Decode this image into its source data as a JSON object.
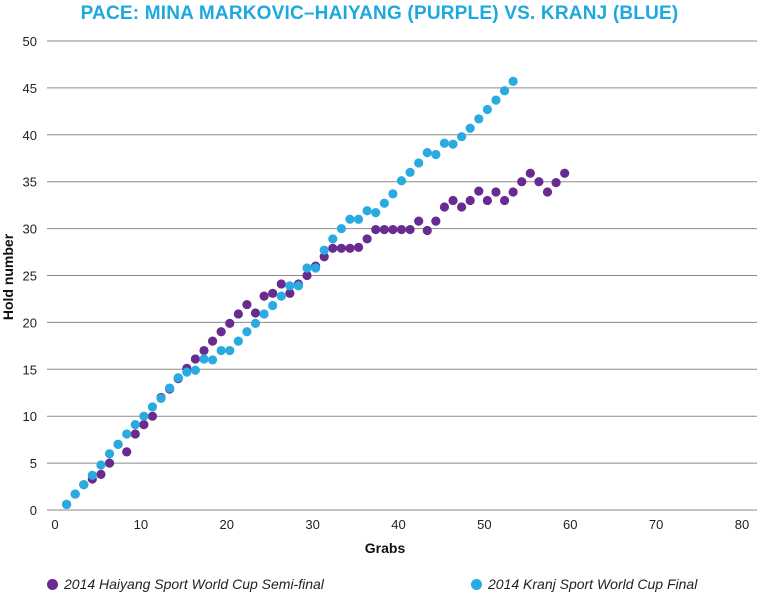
{
  "chart_data": {
    "type": "scatter",
    "title": "PACE: MINA MARKOVIC–HAIYANG (PURPLE) VS. KRANJ (BLUE)",
    "xlabel": "Grabs",
    "ylabel": "Hold number",
    "xlim": [
      0,
      80
    ],
    "ylim": [
      0,
      50
    ],
    "xticks": [
      "0",
      "10",
      "20",
      "30",
      "40",
      "50",
      "60",
      "70",
      "80"
    ],
    "yticks": [
      "0",
      "5",
      "10",
      "15",
      "20",
      "25",
      "30",
      "35",
      "40",
      "45",
      "50"
    ],
    "grid": "horizontal",
    "legend_position": "bottom",
    "series": [
      {
        "name": "2014 Haiyang Sport World Cup Semi-final",
        "color": "#682b8f",
        "x": [
          1,
          2,
          3,
          4,
          5,
          6,
          7,
          8,
          9,
          10,
          11,
          12,
          13,
          14,
          15,
          16,
          17,
          18,
          19,
          20,
          21,
          22,
          23,
          24,
          25,
          26,
          27,
          28,
          29,
          30,
          31,
          32,
          33,
          34,
          35,
          36,
          37,
          38,
          39,
          40,
          41,
          42,
          43,
          44,
          45,
          46,
          47,
          48,
          49,
          50,
          51,
          52,
          53,
          54,
          55,
          56,
          57,
          58,
          59
        ],
        "y": [
          0.6,
          1.7,
          2.7,
          3.3,
          3.8,
          5.0,
          7.0,
          6.2,
          8.1,
          9.1,
          10.0,
          12.0,
          12.9,
          14.0,
          15.1,
          16.1,
          17.0,
          18.0,
          19.0,
          19.9,
          20.9,
          21.9,
          21.0,
          22.8,
          23.1,
          24.1,
          23.1,
          24.1,
          25.0,
          26.0,
          27.0,
          27.9,
          27.9,
          27.9,
          28.0,
          28.9,
          29.9,
          29.9,
          29.9,
          29.9,
          29.9,
          30.8,
          29.8,
          30.8,
          32.3,
          33.0,
          32.3,
          33.0,
          34.0,
          33.0,
          33.9,
          33.0,
          33.9,
          35.0,
          35.9,
          35.0,
          33.9,
          34.9,
          35.9
        ]
      },
      {
        "name": "2014 Kranj Sport World Cup Final",
        "color": "#29abe2",
        "x": [
          1,
          2,
          3,
          4,
          5,
          6,
          7,
          8,
          9,
          10,
          11,
          12,
          13,
          14,
          15,
          16,
          17,
          18,
          19,
          20,
          21,
          22,
          23,
          24,
          25,
          26,
          27,
          28,
          29,
          30,
          31,
          32,
          33,
          34,
          35,
          36,
          37,
          38,
          39,
          40,
          41,
          42,
          43,
          44,
          45,
          46,
          47,
          48,
          49,
          50,
          51,
          52,
          53
        ],
        "y": [
          0.6,
          1.7,
          2.7,
          3.7,
          4.8,
          6.0,
          7.0,
          8.1,
          9.1,
          10.0,
          11.0,
          11.9,
          13.0,
          14.1,
          14.7,
          14.9,
          16.1,
          16.0,
          17.0,
          17.0,
          18.0,
          19.0,
          19.9,
          20.9,
          21.8,
          22.8,
          23.9,
          23.9,
          25.8,
          25.8,
          27.7,
          28.9,
          30.0,
          31.0,
          31.0,
          31.9,
          31.7,
          32.7,
          33.7,
          35.1,
          36.0,
          37.0,
          38.1,
          37.9,
          39.1,
          39.0,
          39.8,
          40.7,
          41.7,
          42.7,
          43.7,
          44.7,
          45.7
        ]
      }
    ]
  }
}
